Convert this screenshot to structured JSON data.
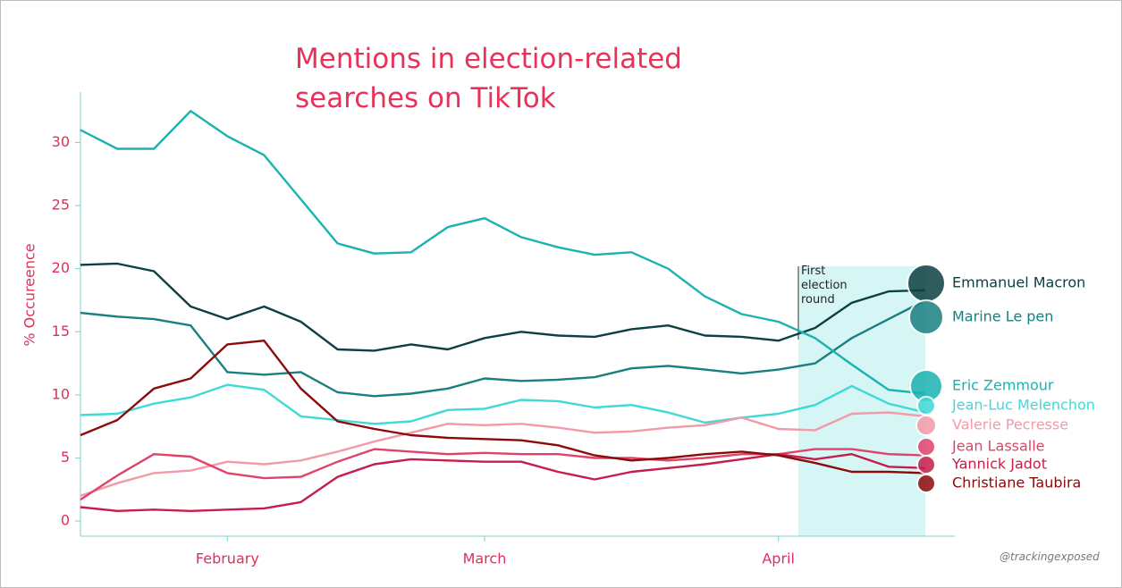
{
  "chart_data": {
    "type": "line",
    "title": "Mentions in election-related searches on TikTok",
    "y_label": "% Occureence",
    "annotation": "First election round",
    "credit": "@trackingexposed",
    "categories": [
      null,
      null,
      null,
      null,
      "February",
      null,
      null,
      null,
      null,
      null,
      null,
      "March",
      null,
      null,
      null,
      null,
      null,
      null,
      null,
      "April",
      null,
      null,
      null,
      null
    ],
    "ylim": [
      -1.2,
      34
    ],
    "yticks": [
      0,
      5,
      10,
      15,
      20,
      25,
      30
    ],
    "series": [
      {
        "name": "Emmanuel Macron",
        "color": "#0d4042",
        "values": [
          20.3,
          20.4,
          19.8,
          17.0,
          16.0,
          17.0,
          15.8,
          13.6,
          13.5,
          14.0,
          13.6,
          14.5,
          15.0,
          14.7,
          14.6,
          15.2,
          15.5,
          14.7,
          14.6,
          14.3,
          15.3,
          17.3,
          18.2,
          18.3
        ]
      },
      {
        "name": "Marine Le pen",
        "color": "#1a7f80",
        "values": [
          16.5,
          16.2,
          16.0,
          15.5,
          11.8,
          11.6,
          11.8,
          10.2,
          9.9,
          10.1,
          10.5,
          11.3,
          11.1,
          11.2,
          11.4,
          12.1,
          12.3,
          12.0,
          11.7,
          12.0,
          12.5,
          14.5,
          16.0,
          17.5
        ]
      },
      {
        "name": "Eric Zemmour",
        "color": "#1ab3b0",
        "values": [
          31.0,
          29.5,
          29.5,
          32.5,
          30.5,
          29.0,
          25.5,
          22.0,
          21.2,
          21.3,
          23.3,
          24.0,
          22.5,
          21.7,
          21.1,
          21.3,
          20.0,
          17.8,
          16.4,
          15.8,
          14.5,
          12.4,
          10.4,
          10.1
        ]
      },
      {
        "name": "Jean-Luc Melenchon",
        "color": "#40d9d6",
        "values": [
          8.4,
          8.5,
          9.3,
          9.8,
          10.8,
          10.4,
          8.3,
          8.0,
          7.7,
          7.9,
          8.8,
          8.9,
          9.6,
          9.5,
          9.0,
          9.2,
          8.6,
          7.8,
          8.2,
          8.5,
          9.2,
          10.7,
          9.3,
          8.6
        ]
      },
      {
        "name": "Valerie Pecresse",
        "color": "#f29aa8",
        "values": [
          2.0,
          3.0,
          3.8,
          4.0,
          4.7,
          4.5,
          4.8,
          5.5,
          6.3,
          7.0,
          7.7,
          7.6,
          7.7,
          7.4,
          7.0,
          7.1,
          7.4,
          7.6,
          8.2,
          7.3,
          7.2,
          8.5,
          8.6,
          8.3
        ]
      },
      {
        "name": "Jean Lassalle",
        "color": "#e0436a",
        "values": [
          1.7,
          3.6,
          5.3,
          5.1,
          3.8,
          3.4,
          3.5,
          4.7,
          5.7,
          5.5,
          5.3,
          5.4,
          5.3,
          5.3,
          5.0,
          5.0,
          4.8,
          5.0,
          5.3,
          5.3,
          5.7,
          5.7,
          5.3,
          5.2
        ]
      },
      {
        "name": "Yannick Jadot",
        "color": "#c41e4a",
        "values": [
          1.1,
          0.8,
          0.9,
          0.8,
          0.9,
          1.0,
          1.5,
          3.5,
          4.5,
          4.9,
          4.8,
          4.7,
          4.7,
          3.9,
          3.3,
          3.9,
          4.2,
          4.5,
          4.9,
          5.3,
          4.9,
          5.3,
          4.3,
          4.2
        ]
      },
      {
        "name": "Christiane Taubira",
        "color": "#8b0a0a",
        "values": [
          6.8,
          8.0,
          10.5,
          11.3,
          14.0,
          14.3,
          10.5,
          7.9,
          7.3,
          6.8,
          6.6,
          6.5,
          6.4,
          6.0,
          5.2,
          4.8,
          5.0,
          5.3,
          5.5,
          5.2,
          4.6,
          3.9,
          3.9,
          3.8
        ]
      }
    ]
  }
}
